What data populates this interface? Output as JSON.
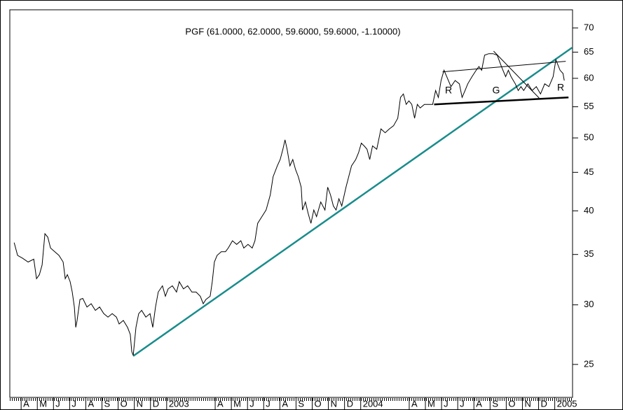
{
  "chart_data": {
    "type": "line",
    "title": "PGF (61.0000, 62.0000, 59.6000, 59.6000, -1.10000)",
    "ylog": true,
    "grid": false,
    "xlim": [
      -0.7,
      34.1
    ],
    "ylim": [
      22.6,
      74
    ],
    "yticks": [
      25,
      30,
      35,
      40,
      45,
      50,
      55,
      60,
      65,
      70
    ],
    "xticks": [
      {
        "value": 0,
        "label": "A"
      },
      {
        "value": 1,
        "label": "M"
      },
      {
        "value": 2,
        "label": "J"
      },
      {
        "value": 3,
        "label": "J"
      },
      {
        "value": 4,
        "label": "A"
      },
      {
        "value": 5,
        "label": "S"
      },
      {
        "value": 6,
        "label": "O"
      },
      {
        "value": 7,
        "label": "N"
      },
      {
        "value": 8,
        "label": "D"
      },
      {
        "value": 9,
        "label": "2003"
      },
      {
        "value": 12,
        "label": "A"
      },
      {
        "value": 13,
        "label": "M"
      },
      {
        "value": 14,
        "label": "J"
      },
      {
        "value": 15,
        "label": "J"
      },
      {
        "value": 16,
        "label": "A"
      },
      {
        "value": 17,
        "label": "S"
      },
      {
        "value": 18,
        "label": "O"
      },
      {
        "value": 19,
        "label": "N"
      },
      {
        "value": 20,
        "label": "D"
      },
      {
        "value": 21,
        "label": "2004"
      },
      {
        "value": 24,
        "label": "A"
      },
      {
        "value": 25,
        "label": "M"
      },
      {
        "value": 26,
        "label": "J"
      },
      {
        "value": 27,
        "label": "J"
      },
      {
        "value": 28,
        "label": "A"
      },
      {
        "value": 29,
        "label": "S"
      },
      {
        "value": 30,
        "label": "O"
      },
      {
        "value": 31,
        "label": "N"
      },
      {
        "value": 32,
        "label": "D"
      },
      {
        "value": 33,
        "label": "2005"
      }
    ],
    "series": [
      {
        "name": "PGF",
        "color": "#000000",
        "x": [
          -0.43,
          -0.22,
          0.09,
          0.43,
          0.78,
          0.95,
          1.13,
          1.3,
          1.47,
          1.65,
          1.82,
          2.08,
          2.34,
          2.6,
          2.73,
          2.86,
          3.03,
          3.16,
          3.29,
          3.38,
          3.46,
          3.64,
          3.81,
          4.07,
          4.33,
          4.59,
          4.85,
          5.11,
          5.37,
          5.63,
          5.89,
          6.06,
          6.32,
          6.58,
          6.75,
          6.84,
          6.93,
          7.1,
          7.27,
          7.45,
          7.71,
          7.97,
          8.14,
          8.31,
          8.48,
          8.74,
          8.92,
          9.09,
          9.35,
          9.61,
          9.78,
          10.04,
          10.3,
          10.56,
          10.82,
          11.08,
          11.26,
          11.43,
          11.69,
          11.82,
          11.95,
          12.12,
          12.38,
          12.64,
          12.81,
          13.07,
          13.33,
          13.59,
          13.77,
          14.03,
          14.29,
          14.46,
          14.63,
          14.89,
          15.15,
          15.41,
          15.58,
          15.84,
          16.02,
          16.19,
          16.32,
          16.45,
          16.62,
          16.8,
          16.97,
          17.14,
          17.32,
          17.4,
          17.58,
          17.75,
          17.92,
          18.1,
          18.27,
          18.53,
          18.79,
          18.96,
          19.13,
          19.31,
          19.48,
          19.65,
          19.83,
          20.09,
          20.26,
          20.43,
          20.69,
          20.87,
          21.04,
          21.21,
          21.39,
          21.56,
          21.73,
          21.99,
          22.25,
          22.51,
          22.77,
          23.03,
          23.29,
          23.46,
          23.64,
          23.81,
          23.98,
          24.16,
          24.33,
          24.5,
          24.68,
          24.94,
          25.19,
          25.45,
          25.63,
          25.8,
          25.97,
          26.15,
          26.32,
          26.58,
          26.84,
          27.1,
          27.27,
          27.45,
          27.62,
          27.88,
          28.14,
          28.31,
          28.48,
          28.66,
          28.92,
          29.18,
          29.44,
          29.7,
          29.96,
          30.13,
          30.3,
          30.56,
          30.74,
          30.91,
          31.08,
          31.34,
          31.6,
          31.86,
          32.12,
          32.38,
          32.64,
          32.9,
          33.07,
          33.33,
          33.51,
          33.59
        ],
        "values": [
          36.3,
          34.9,
          34.6,
          34.2,
          34.5,
          32.5,
          32.9,
          33.9,
          37.3,
          36.9,
          35.7,
          35.3,
          34.9,
          34.2,
          32.5,
          32.9,
          32.2,
          31.2,
          29.8,
          28.0,
          28.6,
          30.5,
          30.6,
          29.8,
          30.1,
          29.5,
          29.8,
          29.2,
          28.9,
          29.2,
          28.9,
          28.3,
          28.6,
          28.0,
          27.4,
          26.0,
          25.7,
          28.0,
          29.2,
          29.5,
          28.9,
          29.2,
          28.0,
          29.8,
          31.2,
          31.8,
          30.8,
          31.5,
          31.8,
          31.2,
          32.2,
          31.5,
          31.8,
          31.2,
          31.2,
          30.8,
          30.1,
          30.5,
          30.8,
          32.2,
          34.2,
          34.9,
          35.3,
          35.3,
          35.7,
          36.5,
          36.1,
          36.5,
          35.7,
          36.1,
          35.7,
          36.5,
          38.5,
          39.3,
          40.1,
          42.0,
          44.4,
          45.9,
          46.8,
          48.3,
          49.7,
          48.3,
          45.9,
          46.8,
          45.4,
          44.4,
          43.0,
          40.1,
          41.1,
          39.7,
          38.5,
          40.1,
          39.3,
          41.1,
          40.1,
          43.0,
          42.0,
          40.6,
          40.1,
          41.5,
          40.6,
          43.0,
          44.4,
          45.9,
          46.8,
          47.8,
          49.2,
          48.8,
          48.3,
          46.8,
          48.8,
          48.3,
          51.4,
          50.8,
          51.4,
          51.9,
          53.1,
          56.6,
          57.2,
          55.4,
          56.0,
          55.4,
          53.1,
          55.4,
          54.8,
          55.4,
          55.4,
          55.4,
          57.8,
          56.6,
          59.6,
          61.5,
          60.3,
          58.5,
          59.6,
          59.0,
          56.6,
          57.8,
          59.0,
          60.3,
          61.5,
          62.2,
          61.5,
          64.4,
          64.7,
          64.7,
          64.4,
          62.2,
          60.3,
          61.5,
          60.3,
          59.0,
          57.8,
          58.5,
          57.8,
          59.0,
          57.8,
          58.5,
          57.2,
          59.0,
          58.5,
          60.3,
          63.5,
          61.5,
          60.9,
          59.6
        ]
      }
    ],
    "trendlines": [
      {
        "color": "#1a8c8c",
        "width": 2.5,
        "x": [
          6.93,
          34.07
        ],
        "y": [
          25.65,
          65.9
        ]
      },
      {
        "color": "#000000",
        "width": 1,
        "x": [
          26.06,
          33.68
        ],
        "y": [
          61.2,
          63.2
        ]
      },
      {
        "color": "#000000",
        "width": 2.5,
        "x": [
          25.54,
          33.85
        ],
        "y": [
          55.4,
          56.6
        ]
      },
      {
        "color": "#000000",
        "width": 1,
        "x": [
          29.22,
          32.03
        ],
        "y": [
          65.2,
          56.5
        ]
      }
    ],
    "annotations": [
      "R",
      "G",
      "R"
    ]
  }
}
